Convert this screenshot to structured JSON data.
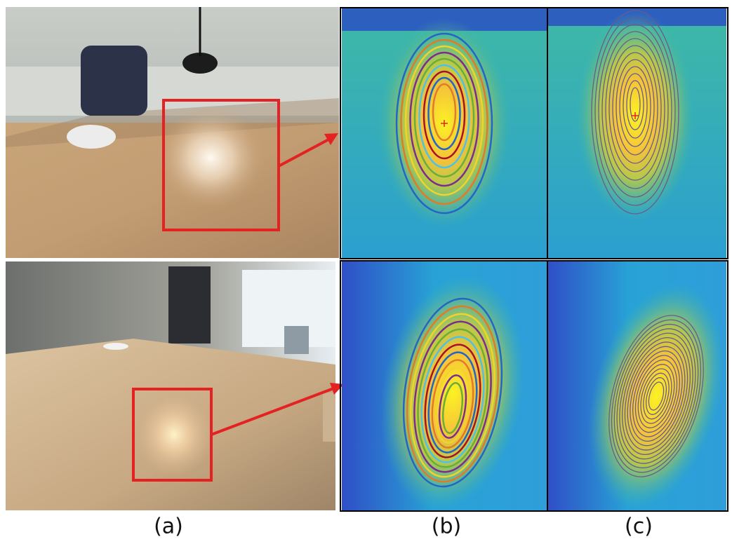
{
  "labels": [
    "(a)",
    "(b)",
    "(c)"
  ]
}
